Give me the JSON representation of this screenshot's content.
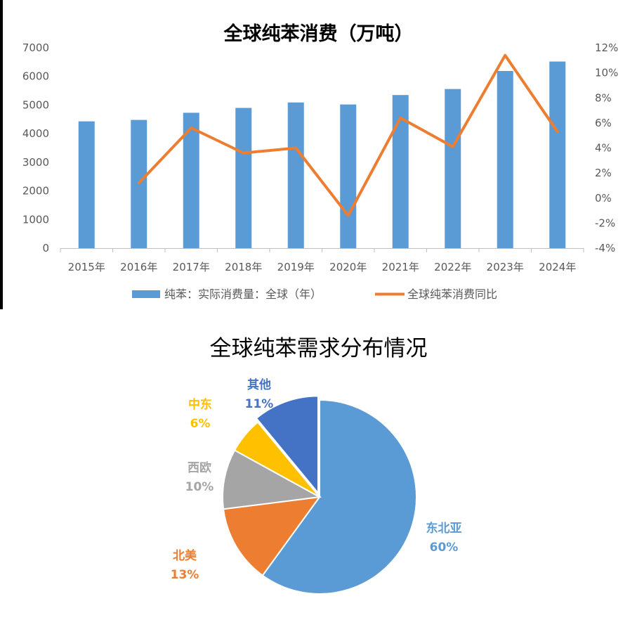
{
  "colors": {
    "bar": "#5b9bd5",
    "line": "#ed7d31",
    "axis": "#bfbfbf",
    "text": "#595959",
    "pie": [
      "#5b9bd5",
      "#ed7d31",
      "#a5a5a5",
      "#ffc000",
      "#4472c4"
    ]
  },
  "chart_data": [
    {
      "type": "bar",
      "title": "全球纯苯消费（万吨）",
      "categories": [
        "2015年",
        "2016年",
        "2017年",
        "2018年",
        "2019年",
        "2020年",
        "2021年",
        "2022年",
        "2023年",
        "2024年"
      ],
      "series": [
        {
          "name": "纯苯：实际消费量：全球（年）",
          "type": "bar",
          "axis": "left",
          "values": [
            4430,
            4480,
            4730,
            4900,
            5090,
            5020,
            5350,
            5560,
            6190,
            6520
          ]
        },
        {
          "name": "全球纯苯消费同比",
          "type": "line",
          "axis": "right",
          "values": [
            null,
            1.2,
            5.6,
            3.6,
            4.0,
            -1.4,
            6.4,
            4.1,
            11.4,
            5.3
          ]
        }
      ],
      "y_left": {
        "range": [
          0,
          7000
        ],
        "ticks": [
          "0",
          "1000",
          "2000",
          "3000",
          "4000",
          "5000",
          "6000",
          "7000"
        ]
      },
      "y_right": {
        "range": [
          -4,
          12
        ],
        "ticks": [
          "-4%",
          "-2%",
          "0%",
          "2%",
          "4%",
          "6%",
          "8%",
          "10%",
          "12%"
        ]
      },
      "grid": false,
      "legend_position": "bottom"
    },
    {
      "type": "pie",
      "title": "全球纯苯需求分布情况",
      "slices": [
        {
          "label": "东北亚",
          "value": 60,
          "pct": "60%"
        },
        {
          "label": "北美",
          "value": 13,
          "pct": "13%"
        },
        {
          "label": "西欧",
          "value": 10,
          "pct": "10%"
        },
        {
          "label": "中东",
          "value": 6,
          "pct": "6%"
        },
        {
          "label": "其他",
          "value": 11,
          "pct": "11%"
        }
      ]
    }
  ]
}
